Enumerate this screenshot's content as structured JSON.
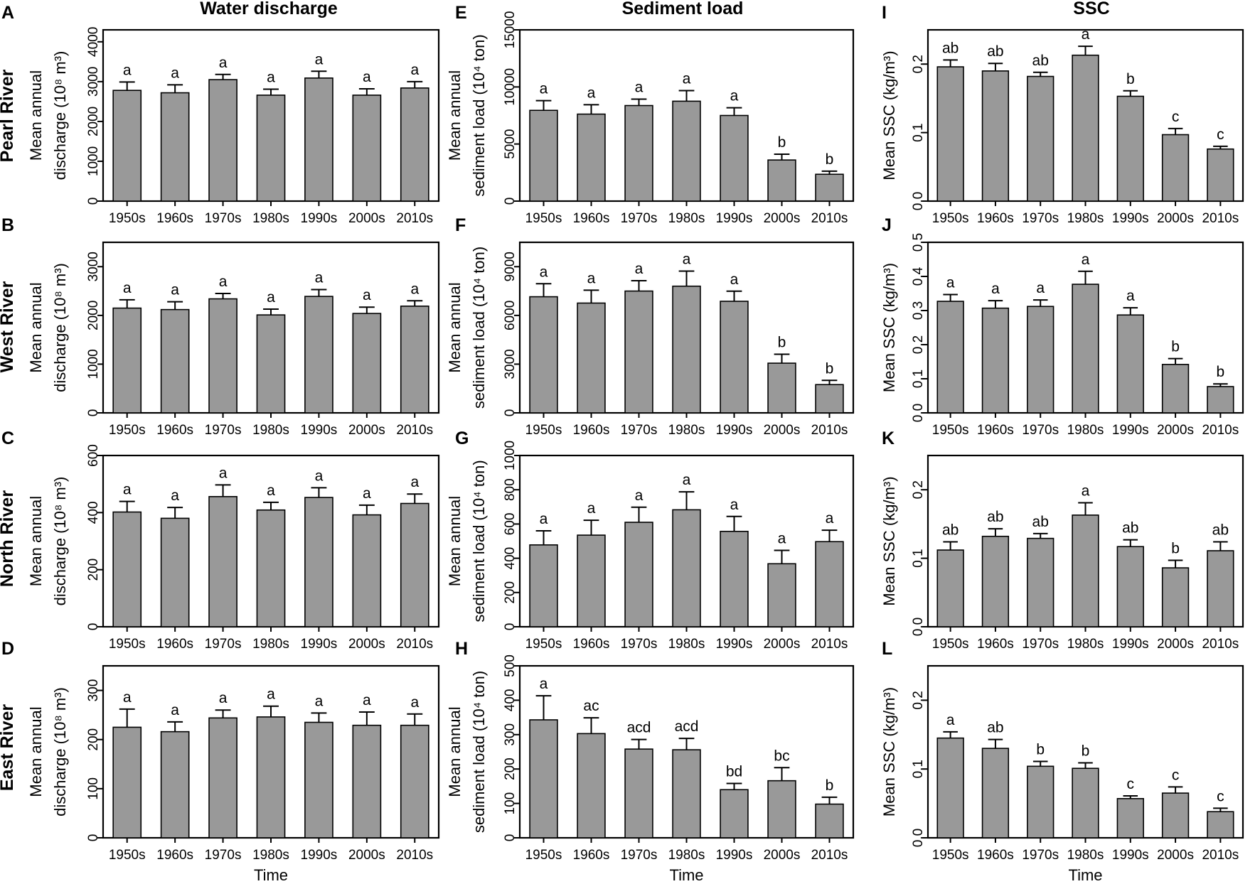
{
  "figure": {
    "column_titles": [
      "Water discharge",
      "Sediment load",
      "SSC"
    ],
    "row_labels": [
      "Pearl River",
      "West River",
      "North River",
      "East River"
    ],
    "x_title": "Time"
  },
  "colors": {
    "bar": "#999999",
    "axis": "#000000",
    "text": "#000000"
  },
  "chart_data": [
    {
      "panel": "A",
      "type": "bar",
      "river": "Pearl River",
      "metric": "Water discharge",
      "categories": [
        "1950s",
        "1960s",
        "1970s",
        "1980s",
        "1990s",
        "2000s",
        "2010s"
      ],
      "values": [
        2780,
        2720,
        3050,
        2660,
        3090,
        2660,
        2840
      ],
      "errors": [
        210,
        200,
        130,
        150,
        170,
        160,
        160
      ],
      "significance": [
        "a",
        "a",
        "a",
        "a",
        "a",
        "a",
        "a"
      ],
      "ylabel": [
        "Mean annual",
        "discharge (10⁸ m³)"
      ],
      "yticks": [
        "0",
        "1000",
        "2000",
        "3000",
        "4000"
      ],
      "ytick_values": [
        0,
        1000,
        2000,
        3000,
        4000
      ],
      "ylim": [
        0,
        4300
      ],
      "xlabel": ""
    },
    {
      "panel": "E",
      "type": "bar",
      "river": "Pearl River",
      "metric": "Sediment load",
      "categories": [
        "1950s",
        "1960s",
        "1970s",
        "1980s",
        "1990s",
        "2000s",
        "2010s"
      ],
      "values": [
        7950,
        7620,
        8370,
        8750,
        7500,
        3600,
        2350
      ],
      "errors": [
        850,
        820,
        560,
        930,
        680,
        510,
        270
      ],
      "significance": [
        "a",
        "a",
        "a",
        "a",
        "a",
        "b",
        "b"
      ],
      "ylabel": [
        "Mean annual",
        "sediment load (10⁴ ton)"
      ],
      "yticks": [
        "0",
        "5000",
        "10000",
        "15000"
      ],
      "ytick_values": [
        0,
        5000,
        10000,
        15000
      ],
      "ylim": [
        0,
        15000
      ],
      "xlabel": ""
    },
    {
      "panel": "I",
      "type": "bar",
      "river": "Pearl River",
      "metric": "SSC",
      "categories": [
        "1950s",
        "1960s",
        "1970s",
        "1980s",
        "1990s",
        "2000s",
        "2010s"
      ],
      "values": [
        0.196,
        0.19,
        0.182,
        0.213,
        0.153,
        0.097,
        0.076
      ],
      "errors": [
        0.01,
        0.011,
        0.006,
        0.013,
        0.008,
        0.009,
        0.004
      ],
      "significance": [
        "ab",
        "ab",
        "ab",
        "a",
        "b",
        "c",
        "c"
      ],
      "ylabel": [
        "Mean SSC (kg/m³)"
      ],
      "yticks": [
        "0.0",
        "0.1",
        "0.2"
      ],
      "ytick_values": [
        0,
        0.1,
        0.2
      ],
      "ylim": [
        0,
        0.25
      ],
      "xlabel": ""
    },
    {
      "panel": "B",
      "type": "bar",
      "river": "West River",
      "metric": "Water discharge",
      "categories": [
        "1950s",
        "1960s",
        "1970s",
        "1980s",
        "1990s",
        "2000s",
        "2010s"
      ],
      "values": [
        2150,
        2120,
        2340,
        2010,
        2390,
        2040,
        2190
      ],
      "errors": [
        170,
        160,
        110,
        120,
        140,
        130,
        110
      ],
      "significance": [
        "a",
        "a",
        "a",
        "a",
        "a",
        "a",
        "a"
      ],
      "ylabel": [
        "Mean annual",
        "discharge (10⁸ m³)"
      ],
      "yticks": [
        "0",
        "1000",
        "2000",
        "3000"
      ],
      "ytick_values": [
        0,
        1000,
        2000,
        3000
      ],
      "ylim": [
        0,
        3500
      ],
      "xlabel": ""
    },
    {
      "panel": "F",
      "type": "bar",
      "river": "West River",
      "metric": "Sediment load",
      "categories": [
        "1950s",
        "1960s",
        "1970s",
        "1980s",
        "1990s",
        "2000s",
        "2010s"
      ],
      "values": [
        7150,
        6760,
        7500,
        7800,
        6870,
        3060,
        1740
      ],
      "errors": [
        800,
        790,
        640,
        930,
        620,
        550,
        260
      ],
      "significance": [
        "a",
        "a",
        "a",
        "a",
        "a",
        "b",
        "b"
      ],
      "ylabel": [
        "Mean annual",
        "sediment load (10⁴ ton)"
      ],
      "yticks": [
        "0",
        "3000",
        "6000",
        "9000"
      ],
      "ytick_values": [
        0,
        3000,
        6000,
        9000
      ],
      "ylim": [
        0,
        10500
      ],
      "xlabel": ""
    },
    {
      "panel": "J",
      "type": "bar",
      "river": "West River",
      "metric": "SSC",
      "categories": [
        "1950s",
        "1960s",
        "1970s",
        "1980s",
        "1990s",
        "2000s",
        "2010s"
      ],
      "values": [
        0.327,
        0.307,
        0.312,
        0.377,
        0.287,
        0.142,
        0.077
      ],
      "errors": [
        0.02,
        0.022,
        0.019,
        0.038,
        0.021,
        0.017,
        0.008
      ],
      "significance": [
        "a",
        "a",
        "a",
        "a",
        "a",
        "b",
        "b"
      ],
      "ylabel": [
        "Mean SSC (kg/m³)"
      ],
      "yticks": [
        "0.0",
        "0.1",
        "0.2",
        "0.3",
        "0.4",
        "0.5"
      ],
      "ytick_values": [
        0,
        0.1,
        0.2,
        0.3,
        0.4,
        0.5
      ],
      "ylim": [
        0,
        0.5
      ],
      "xlabel": ""
    },
    {
      "panel": "C",
      "type": "bar",
      "river": "North River",
      "metric": "Water discharge",
      "categories": [
        "1950s",
        "1960s",
        "1970s",
        "1980s",
        "1990s",
        "2000s",
        "2010s"
      ],
      "values": [
        402,
        380,
        456,
        409,
        453,
        392,
        432
      ],
      "errors": [
        37,
        38,
        41,
        27,
        34,
        34,
        33
      ],
      "significance": [
        "a",
        "a",
        "a",
        "a",
        "a",
        "a",
        "a"
      ],
      "ylabel": [
        "Mean annual",
        "discharge (10⁸ m³)"
      ],
      "yticks": [
        "0",
        "200",
        "400",
        "600"
      ],
      "ytick_values": [
        0,
        200,
        400,
        600
      ],
      "ylim": [
        0,
        600
      ],
      "xlabel": ""
    },
    {
      "panel": "G",
      "type": "bar",
      "river": "North River",
      "metric": "Sediment load",
      "categories": [
        "1950s",
        "1960s",
        "1970s",
        "1980s",
        "1990s",
        "2000s",
        "2010s"
      ],
      "values": [
        478,
        535,
        610,
        683,
        557,
        368,
        497
      ],
      "errors": [
        82,
        87,
        88,
        105,
        87,
        78,
        67
      ],
      "significance": [
        "a",
        "a",
        "a",
        "a",
        "a",
        "a",
        "a"
      ],
      "ylabel": [
        "Mean annual",
        "sediment load (10⁴ ton)"
      ],
      "yticks": [
        "0",
        "200",
        "400",
        "600",
        "800",
        "1000"
      ],
      "ytick_values": [
        0,
        200,
        400,
        600,
        800,
        1000
      ],
      "ylim": [
        0,
        1000
      ],
      "xlabel": ""
    },
    {
      "panel": "K",
      "type": "bar",
      "river": "North River",
      "metric": "SSC",
      "categories": [
        "1950s",
        "1960s",
        "1970s",
        "1980s",
        "1990s",
        "2000s",
        "2010s"
      ],
      "values": [
        0.112,
        0.132,
        0.129,
        0.163,
        0.117,
        0.086,
        0.111
      ],
      "errors": [
        0.012,
        0.011,
        0.007,
        0.018,
        0.01,
        0.011,
        0.013
      ],
      "significance": [
        "ab",
        "ab",
        "ab",
        "a",
        "ab",
        "b",
        "ab"
      ],
      "ylabel": [
        "Mean SSC (kg/m³)"
      ],
      "yticks": [
        "0.0",
        "0.1",
        "0.2"
      ],
      "ytick_values": [
        0,
        0.1,
        0.2
      ],
      "ylim": [
        0,
        0.25
      ],
      "xlabel": ""
    },
    {
      "panel": "D",
      "type": "bar",
      "river": "East River",
      "metric": "Water discharge",
      "categories": [
        "1950s",
        "1960s",
        "1970s",
        "1980s",
        "1990s",
        "2000s",
        "2010s"
      ],
      "values": [
        225,
        216,
        244,
        246,
        235,
        229,
        229
      ],
      "errors": [
        37,
        20,
        16,
        22,
        19,
        27,
        23
      ],
      "significance": [
        "a",
        "a",
        "a",
        "a",
        "a",
        "a",
        "a"
      ],
      "ylabel": [
        "Mean annual",
        "discharge (10⁸ m³)"
      ],
      "yticks": [
        "0",
        "100",
        "200",
        "300"
      ],
      "ytick_values": [
        0,
        100,
        200,
        300
      ],
      "ylim": [
        0,
        350
      ],
      "xlabel": "Time"
    },
    {
      "panel": "H",
      "type": "bar",
      "river": "East River",
      "metric": "Sediment load",
      "categories": [
        "1950s",
        "1960s",
        "1970s",
        "1980s",
        "1990s",
        "2000s",
        "2010s"
      ],
      "values": [
        343,
        303,
        258,
        256,
        140,
        166,
        98
      ],
      "errors": [
        70,
        46,
        28,
        33,
        18,
        38,
        20
      ],
      "significance": [
        "a",
        "ac",
        "acd",
        "acd",
        "bd",
        "bc",
        "b"
      ],
      "ylabel": [
        "Mean annual",
        "sediment load (10⁴ ton)"
      ],
      "yticks": [
        "0",
        "100",
        "200",
        "300",
        "400",
        "500"
      ],
      "ytick_values": [
        0,
        100,
        200,
        300,
        400,
        500
      ],
      "ylim": [
        0,
        500
      ],
      "xlabel": "Time"
    },
    {
      "panel": "L",
      "type": "bar",
      "river": "East River",
      "metric": "SSC",
      "categories": [
        "1950s",
        "1960s",
        "1970s",
        "1980s",
        "1990s",
        "2000s",
        "2010s"
      ],
      "values": [
        0.145,
        0.13,
        0.104,
        0.101,
        0.057,
        0.065,
        0.038
      ],
      "errors": [
        0.009,
        0.013,
        0.007,
        0.008,
        0.004,
        0.009,
        0.005
      ],
      "significance": [
        "a",
        "ab",
        "b",
        "b",
        "c",
        "c",
        "c"
      ],
      "ylabel": [
        "Mean SSC (kg/m³)"
      ],
      "yticks": [
        "0.0",
        "0.1",
        "0.2"
      ],
      "ytick_values": [
        0,
        0.1,
        0.2
      ],
      "ylim": [
        0,
        0.25
      ],
      "xlabel": "Time"
    }
  ]
}
